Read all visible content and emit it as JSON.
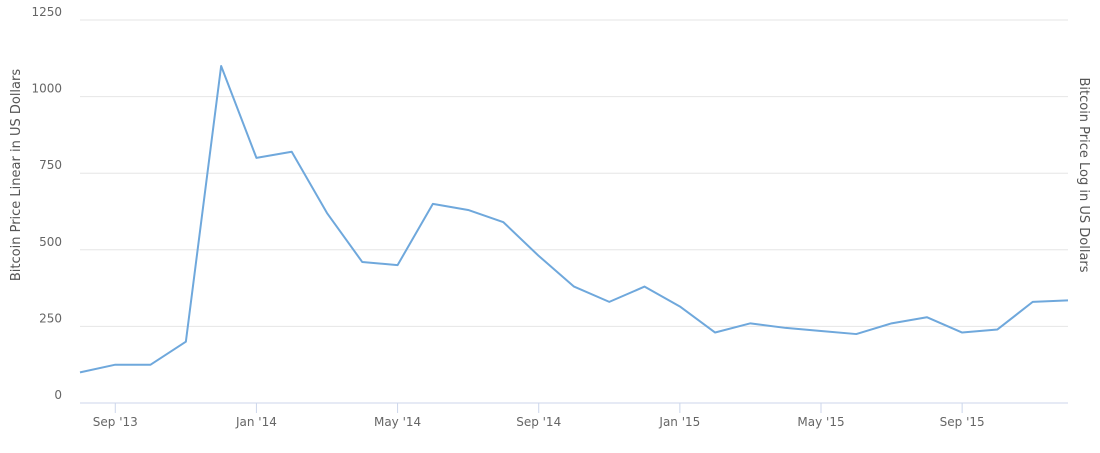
{
  "chart_data": {
    "type": "line",
    "y_axis_title": "Bitcoin Price Linear in US Dollars",
    "y2_axis_title": "Bitcoin Price Log in US Dollars",
    "x": [
      "2013-08",
      "2013-09",
      "2013-10",
      "2013-11",
      "2013-12",
      "2014-01",
      "2014-02",
      "2014-03",
      "2014-04",
      "2014-05",
      "2014-06",
      "2014-07",
      "2014-08",
      "2014-09",
      "2014-10",
      "2014-11",
      "2014-12",
      "2015-01",
      "2015-02",
      "2015-03",
      "2015-04",
      "2015-05",
      "2015-06",
      "2015-07",
      "2015-08",
      "2015-09",
      "2015-10",
      "2015-11",
      "2015-12"
    ],
    "series": [
      {
        "name": "Bitcoin Price",
        "color": "#6fa8dc",
        "values": [
          100,
          125,
          125,
          200,
          1100,
          800,
          820,
          620,
          460,
          450,
          650,
          630,
          590,
          480,
          380,
          330,
          380,
          315,
          230,
          260,
          245,
          235,
          225,
          260,
          280,
          230,
          240,
          330,
          335
        ]
      }
    ],
    "ylim": [
      0,
      1250
    ],
    "yticks": [
      0,
      250,
      500,
      750,
      1000,
      1250
    ],
    "xticks": [
      {
        "value": "2013-09",
        "label": "Sep '13"
      },
      {
        "value": "2014-01",
        "label": "Jan '14"
      },
      {
        "value": "2014-05",
        "label": "May '14"
      },
      {
        "value": "2014-09",
        "label": "Sep '14"
      },
      {
        "value": "2015-01",
        "label": "Jan '15"
      },
      {
        "value": "2015-05",
        "label": "May '15"
      },
      {
        "value": "2015-09",
        "label": "Sep '15"
      }
    ],
    "grid": true
  }
}
